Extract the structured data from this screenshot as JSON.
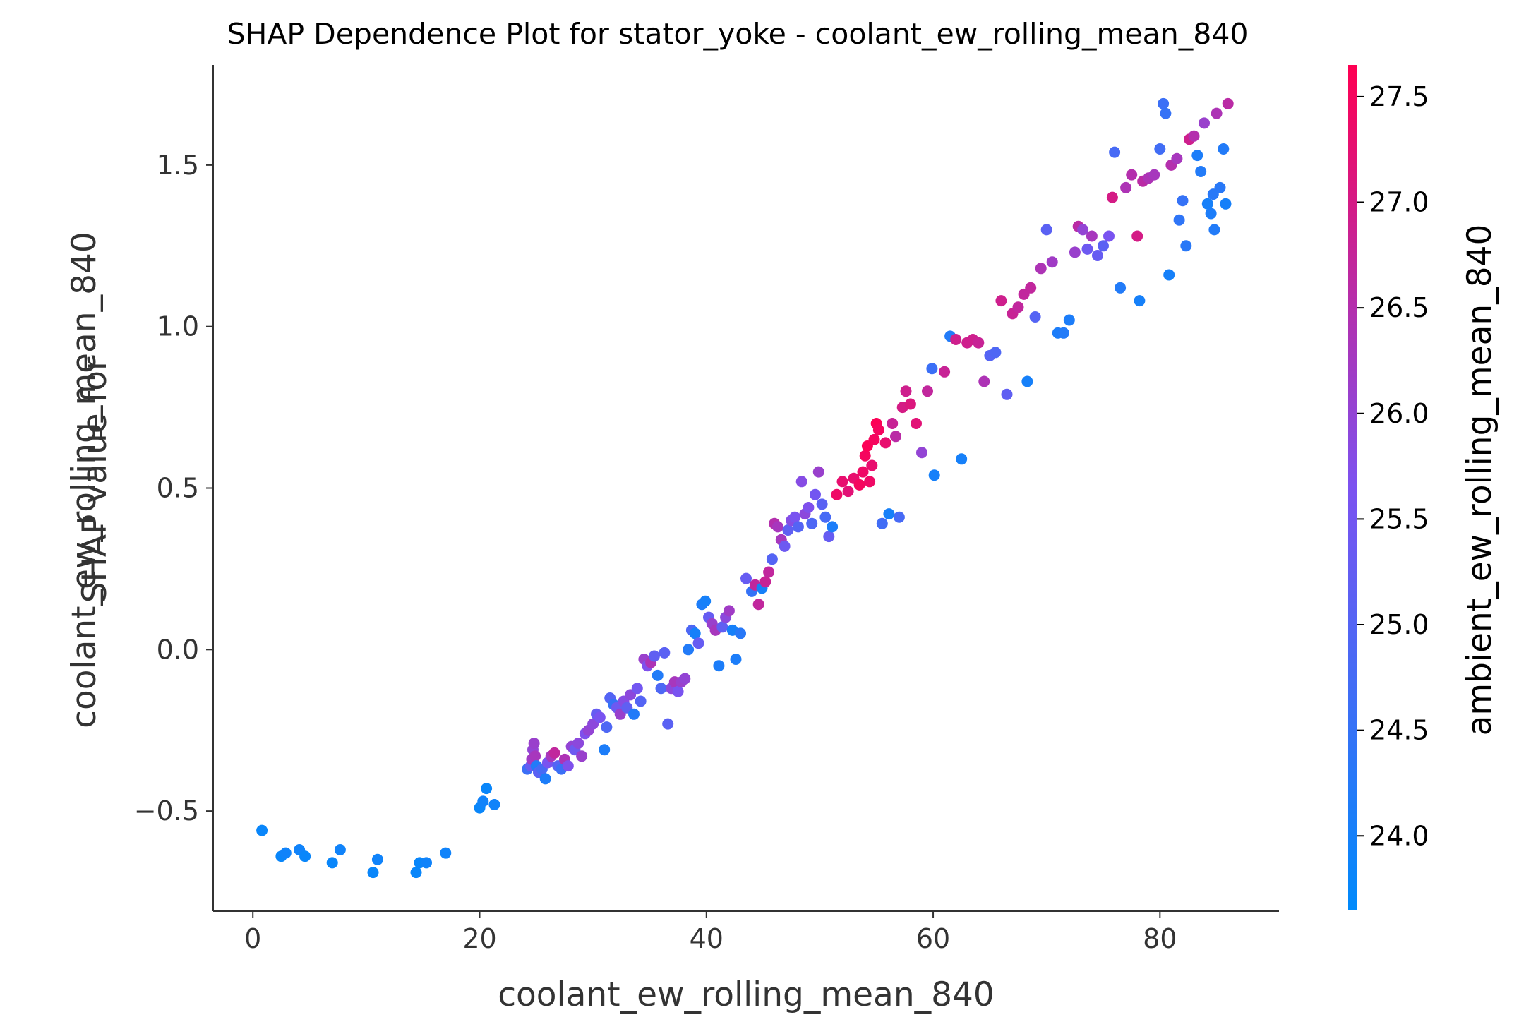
{
  "chart_data": {
    "type": "scatter",
    "title": "SHAP Dependence Plot for stator_yoke - coolant_ew_rolling_mean_840",
    "xlabel": "coolant_ew_rolling_mean_840",
    "ylabel_lines": [
      "SHAP value for",
      "coolant_ew_rolling_mean_840"
    ],
    "xlim": [
      -3.5,
      90.5
    ],
    "ylim": [
      -0.81,
      1.81
    ],
    "xticks": [
      {
        "v": 0,
        "label": "0"
      },
      {
        "v": 20,
        "label": "20"
      },
      {
        "v": 40,
        "label": "40"
      },
      {
        "v": 60,
        "label": "60"
      },
      {
        "v": 80,
        "label": "80"
      }
    ],
    "yticks": [
      {
        "v": -0.5,
        "label": "−0.5"
      },
      {
        "v": 0,
        "label": "0.0"
      },
      {
        "v": 0.5,
        "label": "0.5"
      },
      {
        "v": 1.0,
        "label": "1.0"
      },
      {
        "v": 1.5,
        "label": "1.5"
      }
    ],
    "grid": false,
    "colorbar": {
      "label": "ambient_ew_rolling_mean_840",
      "range": [
        23.65,
        27.65
      ],
      "color_low": "#008afb",
      "color_mid": "#7c52f0",
      "color_high": "#ff0052",
      "ticks": [
        {
          "v": 24.0,
          "label": "24.0"
        },
        {
          "v": 24.5,
          "label": "24.5"
        },
        {
          "v": 25.0,
          "label": "25.0"
        },
        {
          "v": 25.5,
          "label": "25.5"
        },
        {
          "v": 26.0,
          "label": "26.0"
        },
        {
          "v": 26.5,
          "label": "26.5"
        },
        {
          "v": 27.0,
          "label": "27.0"
        },
        {
          "v": 27.5,
          "label": "27.5"
        }
      ]
    },
    "points": [
      [
        0.8,
        -0.56,
        23.8
      ],
      [
        2.5,
        -0.64,
        23.8
      ],
      [
        2.9,
        -0.63,
        23.9
      ],
      [
        4.1,
        -0.62,
        23.9
      ],
      [
        4.6,
        -0.64,
        23.8
      ],
      [
        7.0,
        -0.66,
        23.8
      ],
      [
        7.7,
        -0.62,
        23.9
      ],
      [
        10.6,
        -0.69,
        23.8
      ],
      [
        11.0,
        -0.65,
        23.9
      ],
      [
        14.4,
        -0.69,
        23.8
      ],
      [
        14.7,
        -0.66,
        23.8
      ],
      [
        15.3,
        -0.66,
        23.9
      ],
      [
        17.0,
        -0.63,
        23.9
      ],
      [
        20.0,
        -0.49,
        23.8
      ],
      [
        20.3,
        -0.47,
        23.9
      ],
      [
        20.6,
        -0.43,
        23.8
      ],
      [
        21.3,
        -0.48,
        23.9
      ],
      [
        24.2,
        -0.37,
        24.6
      ],
      [
        24.5,
        -0.36,
        25.3
      ],
      [
        24.6,
        -0.34,
        26.2
      ],
      [
        24.7,
        -0.31,
        26.0
      ],
      [
        24.8,
        -0.29,
        26.1
      ],
      [
        24.9,
        -0.33,
        26.3
      ],
      [
        25.0,
        -0.36,
        24.2
      ],
      [
        25.2,
        -0.38,
        25.1
      ],
      [
        25.5,
        -0.37,
        24.8
      ],
      [
        25.8,
        -0.4,
        24.1
      ],
      [
        26.0,
        -0.35,
        25.6
      ],
      [
        26.3,
        -0.33,
        26.3
      ],
      [
        26.6,
        -0.32,
        26.7
      ],
      [
        26.9,
        -0.36,
        25.0
      ],
      [
        27.2,
        -0.37,
        24.6
      ],
      [
        27.5,
        -0.34,
        26.4
      ],
      [
        27.8,
        -0.36,
        25.7
      ],
      [
        28.1,
        -0.3,
        26.0
      ],
      [
        28.4,
        -0.31,
        25.4
      ],
      [
        28.7,
        -0.29,
        25.9
      ],
      [
        29.0,
        -0.33,
        26.1
      ],
      [
        29.3,
        -0.26,
        25.7
      ],
      [
        29.6,
        -0.25,
        26.0
      ],
      [
        30.0,
        -0.23,
        25.9
      ],
      [
        30.3,
        -0.2,
        25.3
      ],
      [
        30.6,
        -0.21,
        25.6
      ],
      [
        31.0,
        -0.31,
        24.1
      ],
      [
        31.2,
        -0.24,
        24.9
      ],
      [
        31.5,
        -0.15,
        25.0
      ],
      [
        31.8,
        -0.17,
        24.5
      ],
      [
        32.1,
        -0.18,
        25.4
      ],
      [
        32.4,
        -0.2,
        26.1
      ],
      [
        32.7,
        -0.16,
        25.8
      ],
      [
        33.0,
        -0.18,
        25.2
      ],
      [
        33.3,
        -0.14,
        25.9
      ],
      [
        33.6,
        -0.2,
        24.2
      ],
      [
        33.9,
        -0.12,
        25.5
      ],
      [
        34.2,
        -0.16,
        25.0
      ],
      [
        34.5,
        -0.03,
        26.1
      ],
      [
        34.8,
        -0.05,
        25.7
      ],
      [
        35.1,
        -0.04,
        26.4
      ],
      [
        35.4,
        -0.02,
        25.2
      ],
      [
        35.7,
        -0.08,
        24.2
      ],
      [
        36.0,
        -0.12,
        24.9
      ],
      [
        36.3,
        -0.01,
        25.1
      ],
      [
        36.6,
        -0.23,
        25.1
      ],
      [
        36.9,
        -0.12,
        25.9
      ],
      [
        37.2,
        -0.1,
        26.3
      ],
      [
        37.5,
        -0.13,
        25.6
      ],
      [
        37.8,
        -0.1,
        26.1
      ],
      [
        38.1,
        -0.09,
        26.0
      ],
      [
        38.4,
        0.0,
        24.2
      ],
      [
        38.7,
        0.06,
        24.9
      ],
      [
        39.0,
        0.05,
        24.0
      ],
      [
        39.3,
        0.02,
        25.3
      ],
      [
        39.6,
        0.14,
        24.1
      ],
      [
        39.9,
        0.15,
        24.0
      ],
      [
        40.2,
        0.1,
        25.3
      ],
      [
        40.5,
        0.08,
        26.1
      ],
      [
        40.8,
        0.06,
        26.3
      ],
      [
        41.1,
        -0.05,
        24.1
      ],
      [
        41.4,
        0.07,
        25.2
      ],
      [
        41.7,
        0.1,
        25.9
      ],
      [
        42.0,
        0.12,
        26.2
      ],
      [
        42.3,
        0.06,
        24.0
      ],
      [
        42.6,
        -0.03,
        24.1
      ],
      [
        43.0,
        0.05,
        24.3
      ],
      [
        43.5,
        0.22,
        25.3
      ],
      [
        44.0,
        0.18,
        24.5
      ],
      [
        44.3,
        0.2,
        26.7
      ],
      [
        44.6,
        0.14,
        26.7
      ],
      [
        44.9,
        0.19,
        24.0
      ],
      [
        45.2,
        0.21,
        26.8
      ],
      [
        45.5,
        0.24,
        26.7
      ],
      [
        45.8,
        0.28,
        25.0
      ],
      [
        46.0,
        0.39,
        26.5
      ],
      [
        46.3,
        0.38,
        26.3
      ],
      [
        46.6,
        0.34,
        26.3
      ],
      [
        46.9,
        0.32,
        25.4
      ],
      [
        47.2,
        0.37,
        25.2
      ],
      [
        47.5,
        0.4,
        25.8
      ],
      [
        47.8,
        0.41,
        25.6
      ],
      [
        48.1,
        0.38,
        25.0
      ],
      [
        48.4,
        0.52,
        25.8
      ],
      [
        48.7,
        0.42,
        25.9
      ],
      [
        49.0,
        0.44,
        25.7
      ],
      [
        49.3,
        0.39,
        24.9
      ],
      [
        49.6,
        0.48,
        25.5
      ],
      [
        49.9,
        0.55,
        26.1
      ],
      [
        50.2,
        0.45,
        25.1
      ],
      [
        50.5,
        0.41,
        24.8
      ],
      [
        50.8,
        0.35,
        25.3
      ],
      [
        51.1,
        0.38,
        24.1
      ],
      [
        51.5,
        0.48,
        27.4
      ],
      [
        52.0,
        0.52,
        27.3
      ],
      [
        52.5,
        0.49,
        27.2
      ],
      [
        53.0,
        0.53,
        27.3
      ],
      [
        53.5,
        0.51,
        27.5
      ],
      [
        53.8,
        0.55,
        27.4
      ],
      [
        54.0,
        0.6,
        27.5
      ],
      [
        54.2,
        0.63,
        27.6
      ],
      [
        54.4,
        0.52,
        27.4
      ],
      [
        54.6,
        0.57,
        27.3
      ],
      [
        54.8,
        0.65,
        27.5
      ],
      [
        55.0,
        0.7,
        27.6
      ],
      [
        55.2,
        0.68,
        27.5
      ],
      [
        55.5,
        0.39,
        24.7
      ],
      [
        55.8,
        0.64,
        27.3
      ],
      [
        56.1,
        0.42,
        24.0
      ],
      [
        56.4,
        0.7,
        26.8
      ],
      [
        56.7,
        0.66,
        26.6
      ],
      [
        57.0,
        0.41,
        24.8
      ],
      [
        57.3,
        0.75,
        27.0
      ],
      [
        57.6,
        0.8,
        26.9
      ],
      [
        58.0,
        0.76,
        27.1
      ],
      [
        58.5,
        0.7,
        27.2
      ],
      [
        59.0,
        0.61,
        26.0
      ],
      [
        59.5,
        0.8,
        26.7
      ],
      [
        59.9,
        0.87,
        24.6
      ],
      [
        60.1,
        0.54,
        24.0
      ],
      [
        61.0,
        0.86,
        26.8
      ],
      [
        61.5,
        0.97,
        24.2
      ],
      [
        62.0,
        0.96,
        26.9
      ],
      [
        62.5,
        0.59,
        24.0
      ],
      [
        63.0,
        0.95,
        26.9
      ],
      [
        63.5,
        0.96,
        26.9
      ],
      [
        64.0,
        0.95,
        26.8
      ],
      [
        64.5,
        0.83,
        26.4
      ],
      [
        65.0,
        0.91,
        25.0
      ],
      [
        65.5,
        0.92,
        24.9
      ],
      [
        66.0,
        1.08,
        26.9
      ],
      [
        66.5,
        0.79,
        25.2
      ],
      [
        67.0,
        1.04,
        26.8
      ],
      [
        67.5,
        1.06,
        26.7
      ],
      [
        68.0,
        1.1,
        26.7
      ],
      [
        68.3,
        0.83,
        24.0
      ],
      [
        68.6,
        1.12,
        26.7
      ],
      [
        69.0,
        1.03,
        25.0
      ],
      [
        69.5,
        1.18,
        26.4
      ],
      [
        70.0,
        1.3,
        25.1
      ],
      [
        70.5,
        1.2,
        26.2
      ],
      [
        71.0,
        0.98,
        24.1
      ],
      [
        71.5,
        0.98,
        24.2
      ],
      [
        72.0,
        1.02,
        24.1
      ],
      [
        72.5,
        1.23,
        26.1
      ],
      [
        72.8,
        1.31,
        26.6
      ],
      [
        73.2,
        1.3,
        26.0
      ],
      [
        73.6,
        1.24,
        25.4
      ],
      [
        74.0,
        1.28,
        26.3
      ],
      [
        74.5,
        1.22,
        25.3
      ],
      [
        75.0,
        1.25,
        25.1
      ],
      [
        75.5,
        1.28,
        25.6
      ],
      [
        75.8,
        1.4,
        27.0
      ],
      [
        76.0,
        1.54,
        24.8
      ],
      [
        76.5,
        1.12,
        24.2
      ],
      [
        77.0,
        1.43,
        26.4
      ],
      [
        77.5,
        1.47,
        26.5
      ],
      [
        78.0,
        1.28,
        27.0
      ],
      [
        78.2,
        1.08,
        24.0
      ],
      [
        78.5,
        1.45,
        26.6
      ],
      [
        79.0,
        1.46,
        26.4
      ],
      [
        79.5,
        1.47,
        26.3
      ],
      [
        80.0,
        1.55,
        24.7
      ],
      [
        80.3,
        1.69,
        24.6
      ],
      [
        80.5,
        1.66,
        24.5
      ],
      [
        80.8,
        1.16,
        24.0
      ],
      [
        81.0,
        1.5,
        26.5
      ],
      [
        81.5,
        1.52,
        26.3
      ],
      [
        81.7,
        1.33,
        24.4
      ],
      [
        82.0,
        1.39,
        24.5
      ],
      [
        82.3,
        1.25,
        24.3
      ],
      [
        82.6,
        1.58,
        26.9
      ],
      [
        83.0,
        1.59,
        26.5
      ],
      [
        83.3,
        1.53,
        24.1
      ],
      [
        83.6,
        1.48,
        24.2
      ],
      [
        83.9,
        1.63,
        26.1
      ],
      [
        84.2,
        1.38,
        24.0
      ],
      [
        84.5,
        1.35,
        24.1
      ],
      [
        84.8,
        1.3,
        24.2
      ],
      [
        85.0,
        1.66,
        26.4
      ],
      [
        85.3,
        1.43,
        24.3
      ],
      [
        85.6,
        1.55,
        24.2
      ],
      [
        86.0,
        1.69,
        26.6
      ],
      [
        85.8,
        1.38,
        24.0
      ],
      [
        84.7,
        1.41,
        24.3
      ]
    ]
  }
}
